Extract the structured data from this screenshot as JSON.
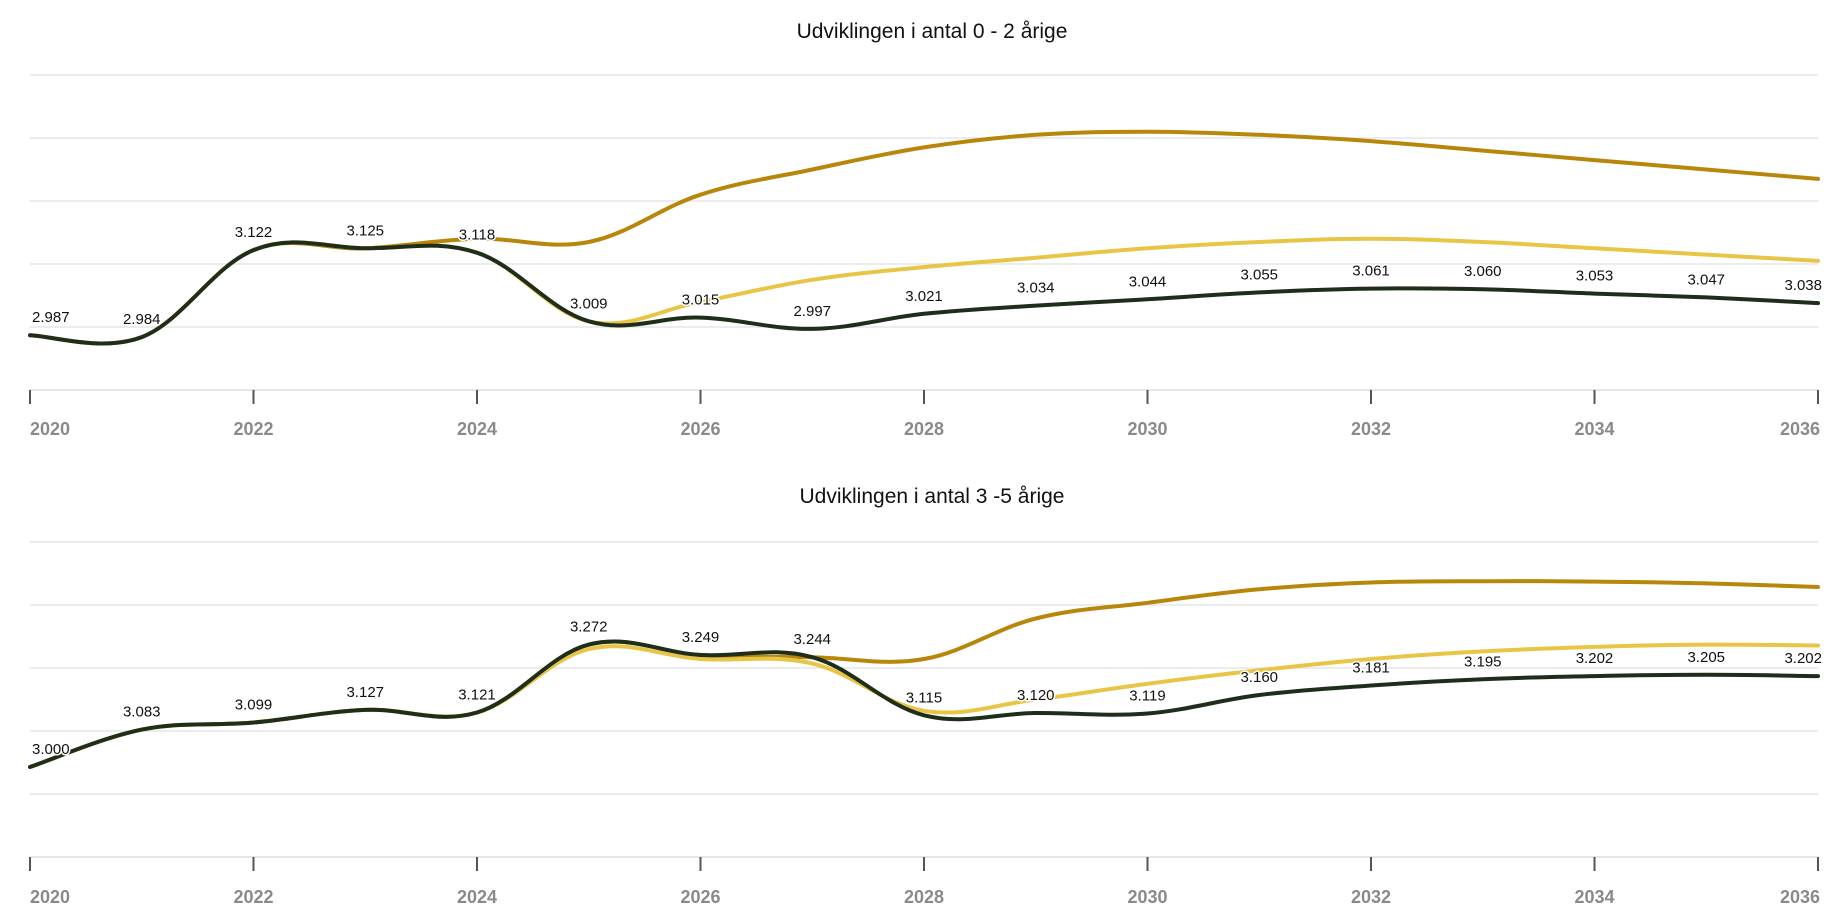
{
  "chart_data": [
    {
      "type": "line",
      "title": "Udviklingen i antal 0 - 2 årige",
      "xlabel": "",
      "ylabel": "",
      "x": [
        2020,
        2021,
        2022,
        2023,
        2024,
        2025,
        2026,
        2027,
        2028,
        2029,
        2030,
        2031,
        2032,
        2033,
        2034,
        2035,
        2036
      ],
      "xticks": [
        "2020",
        "2022",
        "2024",
        "2026",
        "2028",
        "2030",
        "2032",
        "2034",
        "2036"
      ],
      "ylim": [
        2900,
        3400
      ],
      "grid": true,
      "series": [
        {
          "color": "#b8860b",
          "values": [
            2987,
            2984,
            3122,
            3125,
            3140,
            3135,
            3210,
            3250,
            3285,
            3305,
            3310,
            3305,
            3295,
            3280,
            3265,
            3250,
            3235
          ]
        },
        {
          "color": "#e8c547",
          "values": [
            2987,
            2984,
            3122,
            3125,
            3118,
            3009,
            3040,
            3075,
            3095,
            3110,
            3125,
            3135,
            3140,
            3135,
            3125,
            3115,
            3105
          ]
        },
        {
          "color": "#1f2e1a",
          "values": [
            2987,
            2984,
            3122,
            3125,
            3118,
            3009,
            3015,
            2997,
            3021,
            3034,
            3044,
            3055,
            3061,
            3060,
            3053,
            3047,
            3038
          ]
        }
      ],
      "data_labels": [
        "2.987",
        "2.984",
        "3.122",
        "3.125",
        "3.118",
        "3.009",
        "3.015",
        "2.997",
        "3.021",
        "3.034",
        "3.044",
        "3.055",
        "3.061",
        "3.060",
        "3.053",
        "3.047",
        "3.038"
      ]
    },
    {
      "type": "line",
      "title": "Udviklingen i antal 3 -5 årige",
      "xlabel": "",
      "ylabel": "",
      "x": [
        2020,
        2021,
        2022,
        2023,
        2024,
        2025,
        2026,
        2027,
        2028,
        2029,
        2030,
        2031,
        2032,
        2033,
        2034,
        2035,
        2036
      ],
      "xticks": [
        "2020",
        "2022",
        "2024",
        "2026",
        "2028",
        "2030",
        "2032",
        "2034",
        "2036"
      ],
      "ylim": [
        2800,
        3500
      ],
      "grid": true,
      "series": [
        {
          "color": "#b8860b",
          "values": [
            3000,
            3083,
            3099,
            3127,
            3121,
            3272,
            3249,
            3244,
            3240,
            3330,
            3365,
            3395,
            3410,
            3413,
            3412,
            3408,
            3400
          ]
        },
        {
          "color": "#e8c547",
          "values": [
            3000,
            3083,
            3099,
            3127,
            3121,
            3262,
            3240,
            3230,
            3125,
            3150,
            3185,
            3215,
            3240,
            3257,
            3267,
            3272,
            3270
          ]
        },
        {
          "color": "#1f2e1a",
          "values": [
            3000,
            3083,
            3099,
            3127,
            3121,
            3272,
            3249,
            3244,
            3115,
            3120,
            3119,
            3160,
            3181,
            3195,
            3202,
            3205,
            3202
          ]
        }
      ],
      "data_labels": [
        "3.000",
        "3.083",
        "3.099",
        "3.127",
        "3.121",
        "3.272",
        "3.249",
        "3.244",
        "3.115",
        "3.120",
        "3.119",
        "3.160",
        "3.181",
        "3.195",
        "3.202",
        "3.205",
        "3.202"
      ]
    }
  ]
}
